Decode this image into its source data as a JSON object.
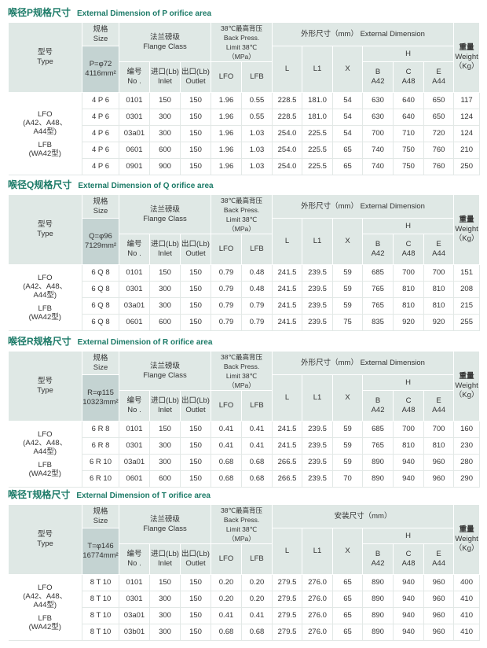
{
  "header": {
    "type_cn": "型号",
    "type_en": "Type",
    "size_cn": "规格",
    "size_en": "Size",
    "flange_cn": "法兰磅级",
    "flange_en": "Flange  Class",
    "bp_1": "38℃最高背压",
    "bp_2": "Back Press.",
    "bp_3": "Limit 38℃",
    "bp_4": "（MPa）",
    "no_cn": "编号",
    "no_en": "No .",
    "inlet_cn": "进口(Lb)",
    "inlet_en": "Inlet",
    "outlet_cn": "出口(Lb)",
    "outlet_en": "Outlet",
    "lfo": "LFO",
    "lfb": "LFB",
    "L": "L",
    "L1": "L1",
    "X": "X",
    "H": "H",
    "B": "B",
    "A42": "A42",
    "C": "C",
    "A48": "A48",
    "E": "E",
    "A44": "A44",
    "w_cn": "重量",
    "w_en": "Weight",
    "w_unit": "（Kg）"
  },
  "type_groups": {
    "lfo": [
      "LFO",
      "(A42、A48、",
      "A44型)"
    ],
    "lfb": [
      "LFB",
      "(WA42型)"
    ]
  },
  "sections": [
    {
      "title_cn": "喉径P规格尺寸",
      "title_en": "External Dimension of P orifice area",
      "size_1": "P=φ72",
      "size_2": "4116mm²",
      "dim_header": "外形尺寸（mm）   External Dimension",
      "rows": [
        [
          "4 P 6",
          "0101",
          "150",
          "150",
          "1.96",
          "0.55",
          "228.5",
          "181.0",
          "54",
          "630",
          "640",
          "650",
          "117"
        ],
        [
          "4 P 6",
          "0301",
          "300",
          "150",
          "1.96",
          "0.55",
          "228.5",
          "181.0",
          "54",
          "630",
          "640",
          "650",
          "124"
        ],
        [
          "4 P 6",
          "03a01",
          "300",
          "150",
          "1.96",
          "1.03",
          "254.0",
          "225.5",
          "54",
          "700",
          "710",
          "720",
          "124"
        ],
        [
          "4 P 6",
          "0601",
          "600",
          "150",
          "1.96",
          "1.03",
          "254.0",
          "225.5",
          "65",
          "740",
          "750",
          "760",
          "210"
        ],
        [
          "4 P 6",
          "0901",
          "900",
          "150",
          "1.96",
          "1.03",
          "254.0",
          "225.5",
          "65",
          "740",
          "750",
          "760",
          "250"
        ]
      ]
    },
    {
      "title_cn": "喉径Q规格尺寸",
      "title_en": "External Dimension of Q orifice area",
      "size_1": "Q=φ96",
      "size_2": "7129mm²",
      "dim_header": "外形尺寸（mm）   External Dimension",
      "rows": [
        [
          "6 Q 8",
          "0101",
          "150",
          "150",
          "0.79",
          "0.48",
          "241.5",
          "239.5",
          "59",
          "685",
          "700",
          "700",
          "151"
        ],
        [
          "6 Q 8",
          "0301",
          "300",
          "150",
          "0.79",
          "0.48",
          "241.5",
          "239.5",
          "59",
          "765",
          "810",
          "810",
          "208"
        ],
        [
          "6 Q 8",
          "03a01",
          "300",
          "150",
          "0.79",
          "0.79",
          "241.5",
          "239.5",
          "59",
          "765",
          "810",
          "810",
          "215"
        ],
        [
          "6 Q 8",
          "0601",
          "600",
          "150",
          "0.79",
          "0.79",
          "241.5",
          "239.5",
          "75",
          "835",
          "920",
          "920",
          "255"
        ]
      ]
    },
    {
      "title_cn": "喉径R规格尺寸",
      "title_en": "External Dimension of R orifice area",
      "size_1": "R=φ115",
      "size_2": "10323mm²",
      "dim_header": "外形尺寸（mm）   External Dimension",
      "rows": [
        [
          "6 R 8",
          "0101",
          "150",
          "150",
          "0.41",
          "0.41",
          "241.5",
          "239.5",
          "59",
          "685",
          "700",
          "700",
          "160"
        ],
        [
          "6 R 8",
          "0301",
          "300",
          "150",
          "0.41",
          "0.41",
          "241.5",
          "239.5",
          "59",
          "765",
          "810",
          "810",
          "230"
        ],
        [
          "6 R 10",
          "03a01",
          "300",
          "150",
          "0.68",
          "0.68",
          "266.5",
          "239.5",
          "59",
          "890",
          "940",
          "960",
          "280"
        ],
        [
          "6 R 10",
          "0601",
          "600",
          "150",
          "0.68",
          "0.68",
          "266.5",
          "239.5",
          "70",
          "890",
          "940",
          "960",
          "290"
        ]
      ]
    },
    {
      "title_cn": "喉径T规格尺寸",
      "title_en": "External Dimension of T orifice area",
      "size_1": "T=φ146",
      "size_2": "16774mm²",
      "dim_header": "安装尺寸（mm）",
      "rows": [
        [
          "8 T 10",
          "0101",
          "150",
          "150",
          "0.20",
          "0.20",
          "279.5",
          "276.0",
          "65",
          "890",
          "940",
          "960",
          "400"
        ],
        [
          "8 T 10",
          "0301",
          "300",
          "150",
          "0.20",
          "0.20",
          "279.5",
          "276.0",
          "65",
          "890",
          "940",
          "960",
          "410"
        ],
        [
          "8 T 10",
          "03a01",
          "300",
          "150",
          "0.41",
          "0.41",
          "279.5",
          "276.0",
          "65",
          "890",
          "940",
          "960",
          "410"
        ],
        [
          "8 T 10",
          "03b01",
          "300",
          "150",
          "0.68",
          "0.68",
          "279.5",
          "276.0",
          "65",
          "890",
          "940",
          "960",
          "410"
        ]
      ]
    }
  ],
  "colors": {
    "title": "#1b7a67",
    "header_bg": "#dfe8e5",
    "size_bg": "#c4d3d2"
  }
}
